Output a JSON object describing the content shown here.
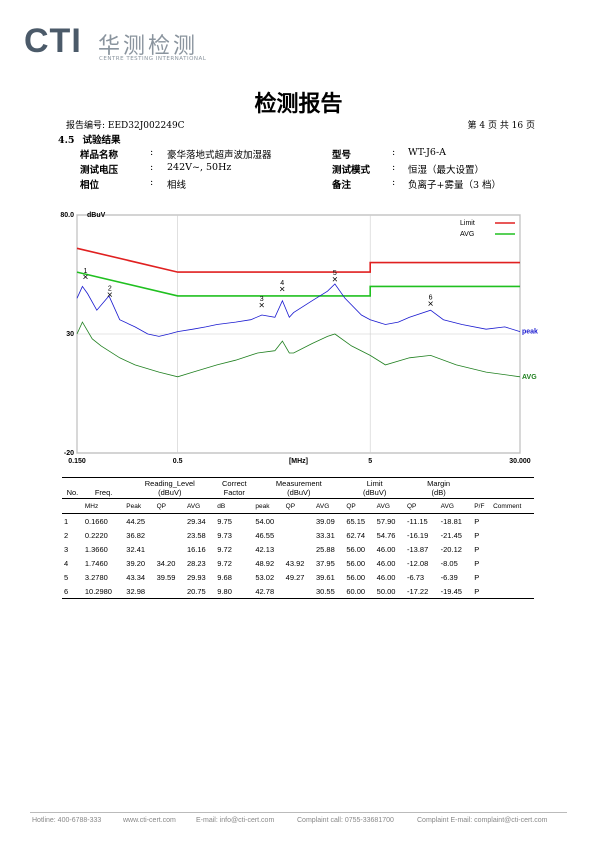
{
  "header": {
    "logo": "CTI",
    "company_cn": "华测检测",
    "company_en": "CENTRE TESTING INTERNATIONAL",
    "title": "检测报告",
    "report_no": "报告编号: EED32J002249C",
    "page": "第 4 页 共 16 页"
  },
  "section": {
    "number": "4.5",
    "title": "试验结果"
  },
  "info": {
    "separator": ":",
    "rows": [
      [
        {
          "label": "样品名称",
          "value": "豪华落地式超声波加湿器"
        },
        {
          "label": "型号",
          "value": "WT-J6-A"
        }
      ],
      [
        {
          "label": "测试电压",
          "value": "242V~, 50Hz"
        },
        {
          "label": "测试模式",
          "value": "恒湿（最大设置）"
        }
      ],
      [
        {
          "label": "相位",
          "value": "相线"
        },
        {
          "label": "备注",
          "value": "负离子+雾量（3 档）"
        }
      ]
    ]
  },
  "chart_data": {
    "type": "line",
    "y_label": "dBuV",
    "x_label": "[MHz]",
    "log_x": true,
    "grid": true,
    "legend": "top-right",
    "xlim": [
      0.15,
      30
    ],
    "ylim": [
      -20,
      80
    ],
    "xticks": [
      {
        "value": 0.15,
        "label": "0.150"
      },
      0.5,
      5,
      {
        "value": 30,
        "label": "30.000"
      }
    ],
    "yticks": [
      {
        "value": 80,
        "label": "80.0"
      },
      30,
      -20
    ],
    "series": [
      {
        "name": "Limit",
        "color": "#e02020",
        "in_legend": true,
        "x": [
          0.15,
          0.5,
          5,
          5,
          30
        ],
        "values": [
          66,
          56,
          56,
          60,
          60
        ]
      },
      {
        "name": "AVG",
        "color": "#20c020",
        "in_legend": true,
        "x": [
          0.15,
          0.5,
          5,
          5,
          30
        ],
        "values": [
          56,
          46,
          46,
          50,
          50
        ]
      },
      {
        "name": "peak",
        "color": "#1a1ad0",
        "in_legend": false,
        "end_label": true,
        "x": [
          0.15,
          0.16,
          0.17,
          0.19,
          0.22,
          0.25,
          0.3,
          0.35,
          0.4,
          0.45,
          0.5,
          0.6,
          0.7,
          0.8,
          1.0,
          1.2,
          1.37,
          1.6,
          1.75,
          1.9,
          2.0,
          2.5,
          3.0,
          3.28,
          3.7,
          4.5,
          5,
          6,
          7,
          8,
          10.3,
          12,
          15,
          20,
          25,
          30
        ],
        "values": [
          45,
          50,
          47,
          40,
          46,
          36,
          33,
          30,
          29,
          30,
          31,
          32,
          33,
          34,
          35,
          36,
          38,
          37,
          44,
          37,
          39,
          44,
          48,
          51,
          45,
          38,
          36,
          34,
          35,
          37,
          40,
          36,
          34,
          32,
          33,
          31
        ]
      },
      {
        "name": "AVG",
        "color": "#208020",
        "in_legend": false,
        "end_label": true,
        "x": [
          0.15,
          0.16,
          0.18,
          0.2,
          0.25,
          0.3,
          0.4,
          0.5,
          0.6,
          0.8,
          1.0,
          1.3,
          1.6,
          1.75,
          1.9,
          2.0,
          2.5,
          3.0,
          3.28,
          4,
          5,
          6,
          8,
          10.3,
          14,
          20,
          30
        ],
        "values": [
          30,
          35,
          28,
          25,
          20,
          17,
          14,
          12,
          14,
          17,
          19,
          22,
          23,
          27,
          22,
          22,
          26,
          29,
          30,
          25,
          21,
          17,
          20,
          21,
          17,
          14,
          12
        ]
      }
    ],
    "markers": {
      "labels": [
        "1",
        "2",
        "3",
        "4",
        "5",
        "6"
      ],
      "x": [
        0.166,
        0.222,
        1.366,
        1.746,
        3.278,
        10.298
      ],
      "values": [
        54.0,
        46.55,
        42.13,
        48.92,
        53.02,
        42.78
      ]
    }
  },
  "table": {
    "header": [
      "No.",
      "Freq.",
      "Reading_Level\n(dBuV)",
      "Correct\nFactor",
      "Measurement\n(dBuV)",
      "Limit\n(dBuV)",
      "Margin\n(dB)"
    ],
    "units": [
      null,
      "MHz",
      "Peak",
      "QP",
      "AVG",
      "dB",
      "peak",
      "QP",
      "AVG",
      "QP",
      "AVG",
      "QP",
      "AVG",
      "P/F",
      "Comment"
    ],
    "rows": [
      [
        "1",
        "0.1660",
        "44.25",
        null,
        "29.34",
        "9.75",
        "54.00",
        null,
        "39.09",
        "65.15",
        "57.90",
        "-11.15",
        "-18.81",
        "P",
        null
      ],
      [
        "2",
        "0.2220",
        "36.82",
        null,
        "23.58",
        "9.73",
        "46.55",
        null,
        "33.31",
        "62.74",
        "54.76",
        "-16.19",
        "-21.45",
        "P",
        null
      ],
      [
        "3",
        "1.3660",
        "32.41",
        null,
        "16.16",
        "9.72",
        "42.13",
        null,
        "25.88",
        "56.00",
        "46.00",
        "-13.87",
        "-20.12",
        "P",
        null
      ],
      [
        "4",
        "1.7460",
        "39.20",
        "34.20",
        "28.23",
        "9.72",
        "48.92",
        "43.92",
        "37.95",
        "56.00",
        "46.00",
        "-12.08",
        "-8.05",
        "P",
        null
      ],
      [
        "5",
        "3.2780",
        "43.34",
        "39.59",
        "29.93",
        "9.68",
        "53.02",
        "49.27",
        "39.61",
        "56.00",
        "46.00",
        "-6.73",
        "-6.39",
        "P",
        null
      ],
      [
        "6",
        "10.2980",
        "32.98",
        null,
        "20.75",
        "9.80",
        "42.78",
        null,
        "30.55",
        "60.00",
        "50.00",
        "-17.22",
        "-19.45",
        "P",
        null
      ]
    ]
  },
  "footer": [
    "Hotline: 400-6788-333",
    "www.cti-cert.com",
    "E-mail: info@cti-cert.com",
    "Complaint call: 0755-33681700",
    "Complaint E-mail: complaint@cti-cert.com"
  ]
}
